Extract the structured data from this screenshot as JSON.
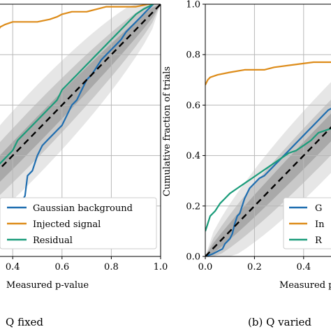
{
  "chart_data": [
    {
      "type": "line",
      "caption": "Q fixed",
      "xlabel": "Measured p-value",
      "ylabel": "",
      "xlim": [
        0.0,
        1.0
      ],
      "ylim": [
        0.0,
        1.0
      ],
      "grid": true,
      "x_ticks": [
        "0.4",
        "0.6",
        "0.8",
        "1.0"
      ],
      "y_ticks": [],
      "legend": {
        "placement": "bottom-right",
        "entries": [
          "Gaussian background",
          "Injected signal",
          "Residual"
        ]
      },
      "series": [
        {
          "name": "Gaussian background",
          "color": "#1f6eb0",
          "points": [
            [
              0.3,
              0.02
            ],
            [
              0.32,
              0.05
            ],
            [
              0.34,
              0.08
            ],
            [
              0.35,
              0.12
            ],
            [
              0.36,
              0.13
            ],
            [
              0.38,
              0.14
            ],
            [
              0.39,
              0.17
            ],
            [
              0.4,
              0.18
            ],
            [
              0.41,
              0.18
            ],
            [
              0.42,
              0.21
            ],
            [
              0.43,
              0.21
            ],
            [
              0.45,
              0.24
            ],
            [
              0.46,
              0.32
            ],
            [
              0.48,
              0.34
            ],
            [
              0.5,
              0.4
            ],
            [
              0.52,
              0.44
            ],
            [
              0.54,
              0.46
            ],
            [
              0.56,
              0.48
            ],
            [
              0.58,
              0.5
            ],
            [
              0.6,
              0.52
            ],
            [
              0.62,
              0.56
            ],
            [
              0.64,
              0.6
            ],
            [
              0.66,
              0.62
            ],
            [
              0.68,
              0.66
            ],
            [
              0.7,
              0.7
            ],
            [
              0.72,
              0.72
            ],
            [
              0.74,
              0.75
            ],
            [
              0.76,
              0.78
            ],
            [
              0.78,
              0.8
            ],
            [
              0.8,
              0.82
            ],
            [
              0.82,
              0.84
            ],
            [
              0.84,
              0.86
            ],
            [
              0.86,
              0.89
            ],
            [
              0.88,
              0.91
            ],
            [
              0.9,
              0.93
            ],
            [
              0.92,
              0.95
            ],
            [
              0.94,
              0.97
            ],
            [
              0.96,
              0.99
            ],
            [
              0.97,
              1.0
            ]
          ]
        },
        {
          "name": "Injected signal",
          "color": "#dd8c1a",
          "points": [
            [
              0.3,
              0.81
            ],
            [
              0.31,
              0.84
            ],
            [
              0.33,
              0.88
            ],
            [
              0.35,
              0.91
            ],
            [
              0.37,
              0.92
            ],
            [
              0.4,
              0.93
            ],
            [
              0.45,
              0.93
            ],
            [
              0.5,
              0.93
            ],
            [
              0.55,
              0.94
            ],
            [
              0.58,
              0.95
            ],
            [
              0.6,
              0.96
            ],
            [
              0.64,
              0.97
            ],
            [
              0.7,
              0.97
            ],
            [
              0.74,
              0.98
            ],
            [
              0.78,
              0.99
            ],
            [
              0.85,
              0.99
            ],
            [
              0.9,
              0.99
            ],
            [
              0.95,
              1.0
            ],
            [
              0.97,
              1.0
            ]
          ]
        },
        {
          "name": "Residual",
          "color": "#1a9c7a",
          "points": [
            [
              0.3,
              0.3
            ],
            [
              0.32,
              0.32
            ],
            [
              0.34,
              0.36
            ],
            [
              0.36,
              0.38
            ],
            [
              0.38,
              0.4
            ],
            [
              0.4,
              0.42
            ],
            [
              0.42,
              0.46
            ],
            [
              0.44,
              0.48
            ],
            [
              0.46,
              0.5
            ],
            [
              0.48,
              0.52
            ],
            [
              0.5,
              0.54
            ],
            [
              0.52,
              0.56
            ],
            [
              0.54,
              0.58
            ],
            [
              0.56,
              0.6
            ],
            [
              0.58,
              0.62
            ],
            [
              0.6,
              0.66
            ],
            [
              0.62,
              0.68
            ],
            [
              0.64,
              0.7
            ],
            [
              0.66,
              0.72
            ],
            [
              0.68,
              0.74
            ],
            [
              0.7,
              0.76
            ],
            [
              0.72,
              0.78
            ],
            [
              0.74,
              0.8
            ],
            [
              0.76,
              0.82
            ],
            [
              0.78,
              0.84
            ],
            [
              0.8,
              0.86
            ],
            [
              0.82,
              0.88
            ],
            [
              0.84,
              0.9
            ],
            [
              0.86,
              0.92
            ],
            [
              0.88,
              0.94
            ],
            [
              0.9,
              0.96
            ],
            [
              0.93,
              0.98
            ],
            [
              0.95,
              0.99
            ],
            [
              0.97,
              1.0
            ]
          ]
        }
      ]
    },
    {
      "type": "line",
      "caption": "(b) Q varied",
      "xlabel": "Measured p",
      "ylabel": "Cumulative fraction of trials",
      "xlim": [
        0.0,
        1.0
      ],
      "ylim": [
        0.0,
        1.0
      ],
      "grid": true,
      "x_ticks": [
        "0.0",
        "0.2",
        "0.4"
      ],
      "y_ticks": [
        "0.0",
        "0.2",
        "0.4",
        "0.6",
        "0.8",
        "1.0"
      ],
      "legend": {
        "placement": "bottom-right",
        "entries": [
          "G",
          "In",
          "R"
        ]
      },
      "series": [
        {
          "name": "G",
          "color": "#1f6eb0",
          "points": [
            [
              0.0,
              0.0
            ],
            [
              0.03,
              0.01
            ],
            [
              0.05,
              0.02
            ],
            [
              0.07,
              0.03
            ],
            [
              0.08,
              0.05
            ],
            [
              0.09,
              0.06
            ],
            [
              0.1,
              0.07
            ],
            [
              0.11,
              0.09
            ],
            [
              0.12,
              0.13
            ],
            [
              0.13,
              0.16
            ],
            [
              0.14,
              0.17
            ],
            [
              0.15,
              0.2
            ],
            [
              0.16,
              0.23
            ],
            [
              0.18,
              0.27
            ],
            [
              0.2,
              0.29
            ],
            [
              0.22,
              0.31
            ],
            [
              0.24,
              0.32
            ],
            [
              0.26,
              0.34
            ],
            [
              0.28,
              0.36
            ],
            [
              0.3,
              0.38
            ],
            [
              0.32,
              0.4
            ],
            [
              0.34,
              0.42
            ],
            [
              0.36,
              0.44
            ],
            [
              0.38,
              0.46
            ],
            [
              0.4,
              0.48
            ],
            [
              0.42,
              0.5
            ],
            [
              0.44,
              0.52
            ],
            [
              0.46,
              0.54
            ],
            [
              0.48,
              0.56
            ],
            [
              0.5,
              0.58
            ],
            [
              0.52,
              0.59
            ]
          ]
        },
        {
          "name": "In",
          "color": "#dd8c1a",
          "points": [
            [
              0.0,
              0.68
            ],
            [
              0.01,
              0.7
            ],
            [
              0.02,
              0.71
            ],
            [
              0.05,
              0.72
            ],
            [
              0.1,
              0.73
            ],
            [
              0.16,
              0.74
            ],
            [
              0.24,
              0.74
            ],
            [
              0.28,
              0.75
            ],
            [
              0.36,
              0.76
            ],
            [
              0.44,
              0.77
            ],
            [
              0.52,
              0.77
            ]
          ]
        },
        {
          "name": "R",
          "color": "#1a9c7a",
          "points": [
            [
              0.0,
              0.1
            ],
            [
              0.01,
              0.13
            ],
            [
              0.02,
              0.16
            ],
            [
              0.04,
              0.18
            ],
            [
              0.06,
              0.21
            ],
            [
              0.08,
              0.23
            ],
            [
              0.1,
              0.25
            ],
            [
              0.13,
              0.27
            ],
            [
              0.16,
              0.29
            ],
            [
              0.19,
              0.31
            ],
            [
              0.22,
              0.33
            ],
            [
              0.25,
              0.35
            ],
            [
              0.28,
              0.37
            ],
            [
              0.31,
              0.39
            ],
            [
              0.34,
              0.41
            ],
            [
              0.37,
              0.42
            ],
            [
              0.4,
              0.44
            ],
            [
              0.43,
              0.46
            ],
            [
              0.46,
              0.49
            ],
            [
              0.49,
              0.5
            ],
            [
              0.52,
              0.51
            ]
          ]
        }
      ]
    }
  ]
}
